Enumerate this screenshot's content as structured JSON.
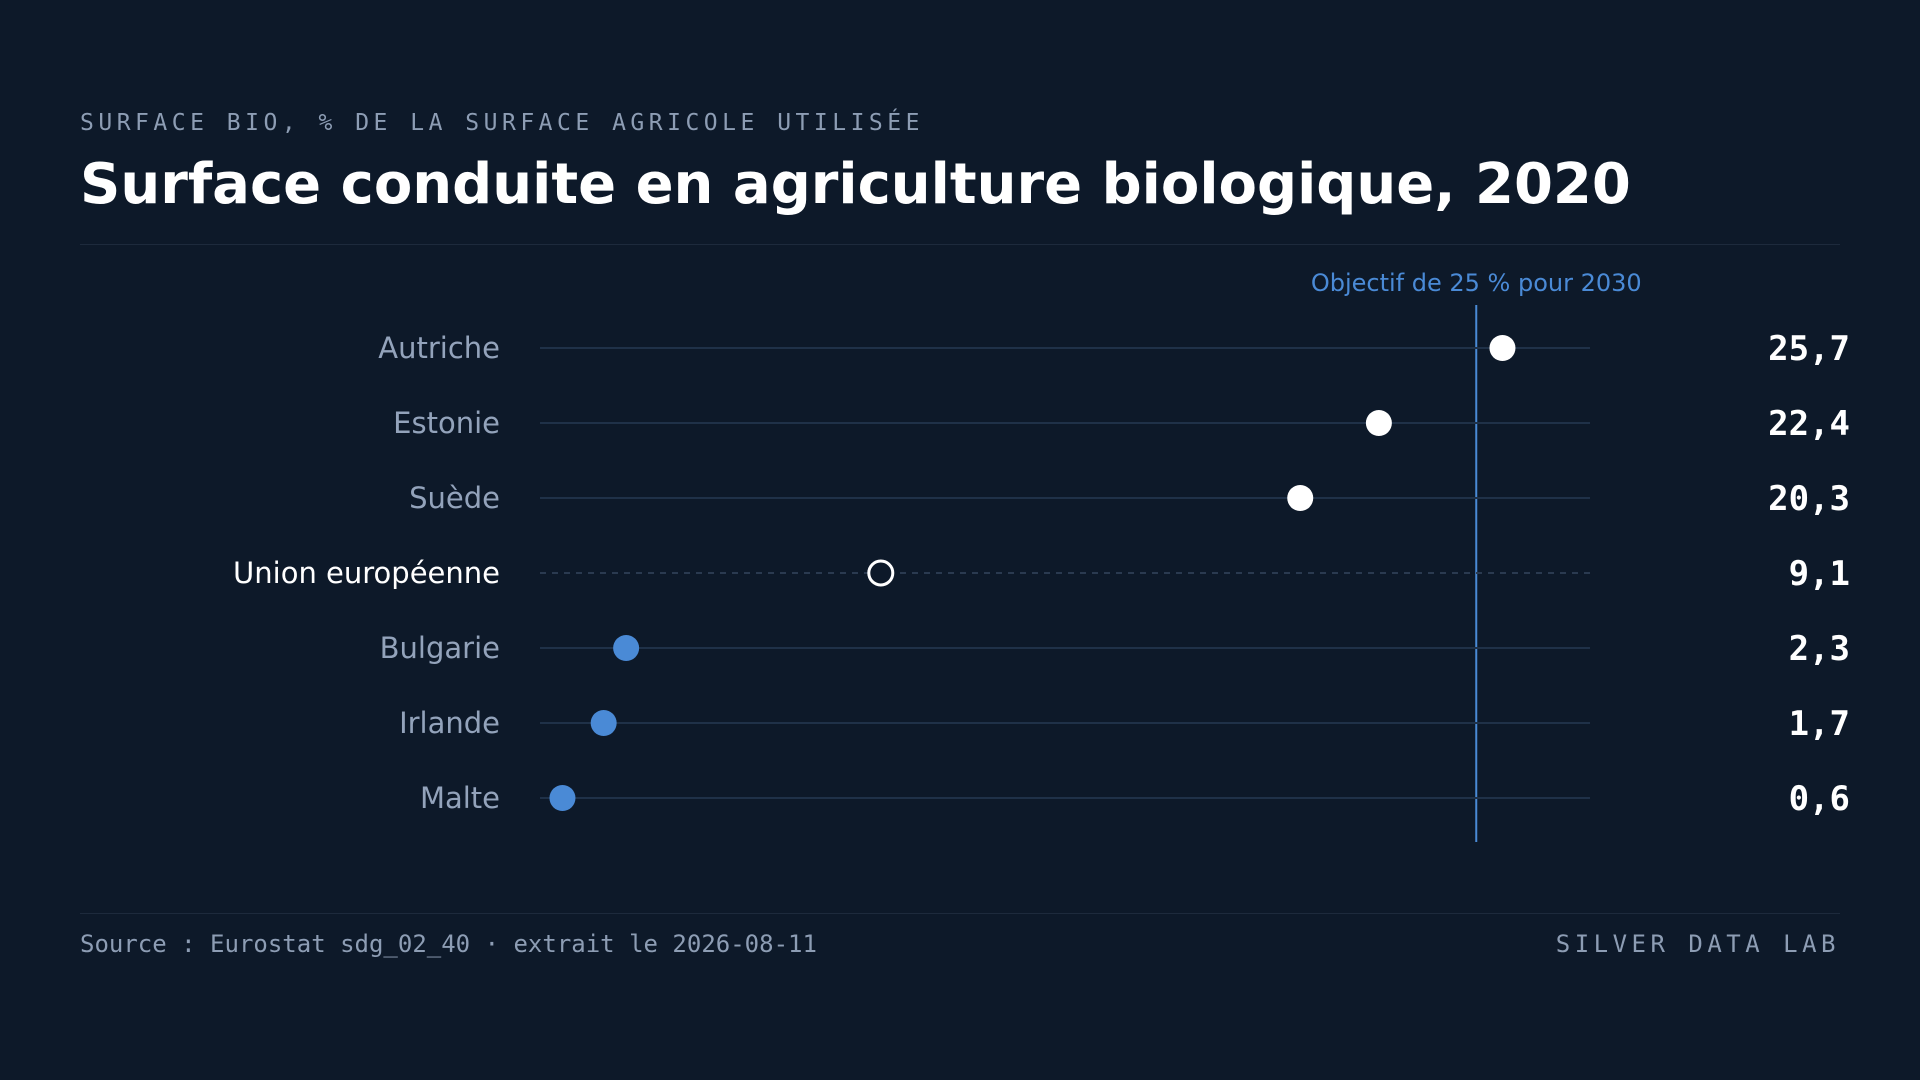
{
  "header": {
    "kicker": "SURFACE BIO, % DE LA SURFACE AGRICOLE UTILISÉE",
    "title": "Surface conduite en agriculture biologique, 2020"
  },
  "footer": {
    "source": "Source : Eurostat sdg_02_40 · extrait le 2026-08-11",
    "brand": "SILVER DATA LAB"
  },
  "colors": {
    "background": "#0d1929",
    "high": "#ffffff",
    "low": "#4a8ad6",
    "target": "#4a8ad6",
    "track": "#1f3148"
  },
  "chart_data": {
    "type": "scatter",
    "xlim": [
      0,
      30
    ],
    "grid": false,
    "target": {
      "value": 25,
      "label": "Objectif de 25 % pour 2030"
    },
    "rows": [
      {
        "label": "Autriche",
        "value": 25.7,
        "display": "25,7",
        "group": "high"
      },
      {
        "label": "Estonie",
        "value": 22.4,
        "display": "22,4",
        "group": "high"
      },
      {
        "label": "Suède",
        "value": 20.3,
        "display": "20,3",
        "group": "high"
      },
      {
        "label": "Union européenne",
        "value": 9.1,
        "display": "9,1",
        "group": "reference"
      },
      {
        "label": "Bulgarie",
        "value": 2.3,
        "display": "2,3",
        "group": "low"
      },
      {
        "label": "Irlande",
        "value": 1.7,
        "display": "1,7",
        "group": "low"
      },
      {
        "label": "Malte",
        "value": 0.6,
        "display": "0,6",
        "group": "low"
      }
    ]
  }
}
